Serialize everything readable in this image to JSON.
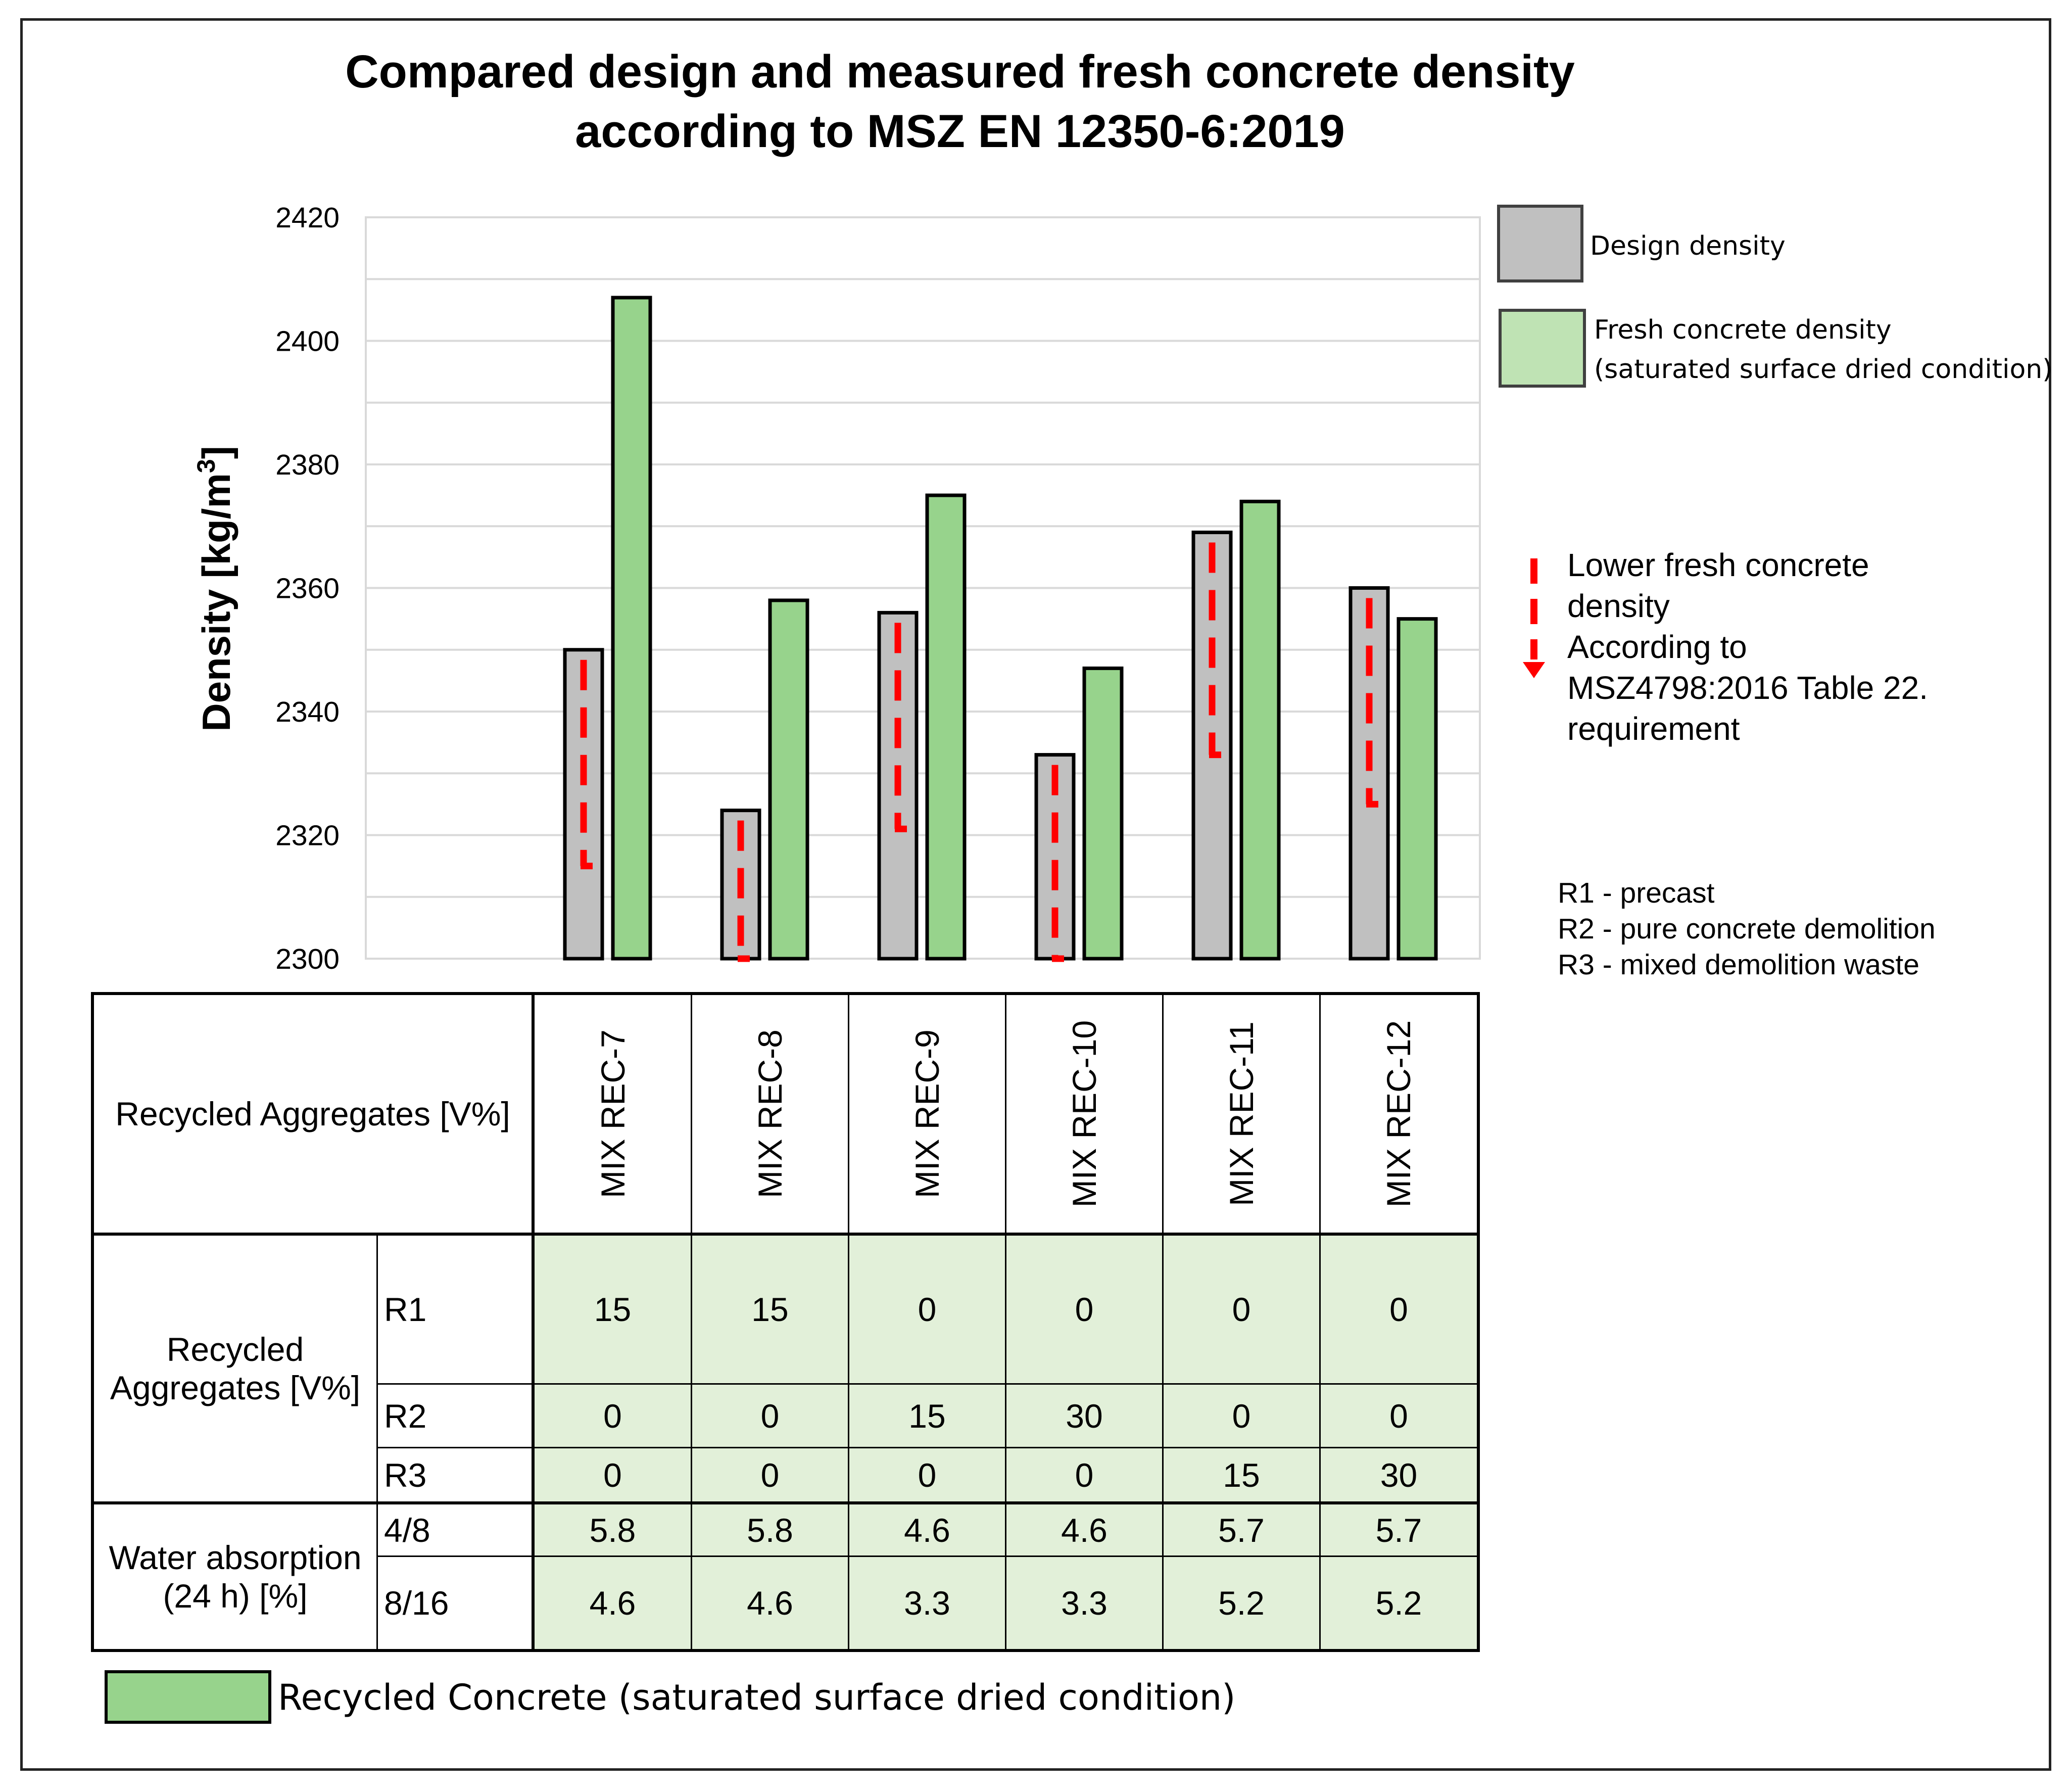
{
  "title": {
    "line1": "Compared design and measured fresh concrete density",
    "line2": "according to MSZ EN 12350-6:2019"
  },
  "chart_data": {
    "type": "bar",
    "title": "Compared design and measured fresh concrete density according to MSZ EN 12350-6:2019",
    "ylabel": "Density [kg/m3]",
    "ylabel_main": "Density [kg/m",
    "ylabel_sup": "3",
    "ylabel_end": "]",
    "ylim": [
      2300,
      2420
    ],
    "yticks": [
      2300,
      2320,
      2340,
      2360,
      2380,
      2400,
      2420
    ],
    "grid": true,
    "categories": [
      "MIX REC-7",
      "MIX REC-8",
      "MIX REC-9",
      "MIX REC-10",
      "MIX REC-11",
      "MIX REC-12"
    ],
    "series": [
      {
        "name": "Design density",
        "color": "#c0c0c0",
        "values": [
          2350,
          2324,
          2356,
          2333,
          2369,
          2360
        ]
      },
      {
        "name": "Fresh concrete density (saturated surface dried condition)",
        "color": "#97d38c",
        "values": [
          2407,
          2358,
          2375,
          2347,
          2374,
          2355
        ]
      }
    ],
    "lower_density_limit": [
      2315,
      2300,
      2321,
      2300,
      2333,
      2325
    ],
    "legend_position": "right"
  },
  "legend": {
    "design": "Design density",
    "fresh_line1": "Fresh concrete density",
    "fresh_line2": "(saturated surface dried condition)"
  },
  "note": {
    "lines": [
      "Lower fresh concrete",
      "density",
      "According to",
      "MSZ4798:2016 Table 22.",
      "requirement"
    ],
    "color": "#ff0000"
  },
  "r_legend": {
    "lines": [
      "R1 - precast",
      "R2 - pure concrete demolition",
      "R3 - mixed demolition waste"
    ]
  },
  "table": {
    "header_label": "Recycled Aggregates [V%]",
    "group1_label_line1": "Recycled",
    "group1_label_line2": "Aggregates [V%]",
    "group2_label_line1": "Water absorption",
    "group2_label_line2": "(24 h) [%]",
    "rows": [
      {
        "label": "R1",
        "values": [
          "15",
          "15",
          "0",
          "0",
          "0",
          "0"
        ]
      },
      {
        "label": "R2",
        "values": [
          "0",
          "0",
          "15",
          "30",
          "0",
          "0"
        ]
      },
      {
        "label": "R3",
        "values": [
          "0",
          "0",
          "0",
          "0",
          "15",
          "30"
        ]
      },
      {
        "label": "4/8",
        "values": [
          "5.8",
          "5.8",
          "4.6",
          "4.6",
          "5.7",
          "5.7"
        ]
      },
      {
        "label": "8/16",
        "values": [
          "4.6",
          "4.6",
          "3.3",
          "3.3",
          "5.2",
          "5.2"
        ]
      }
    ],
    "cell_color": "#e2f0d9"
  },
  "bottom_legend": {
    "label": "Recycled Concrete (saturated surface dried condition)"
  }
}
